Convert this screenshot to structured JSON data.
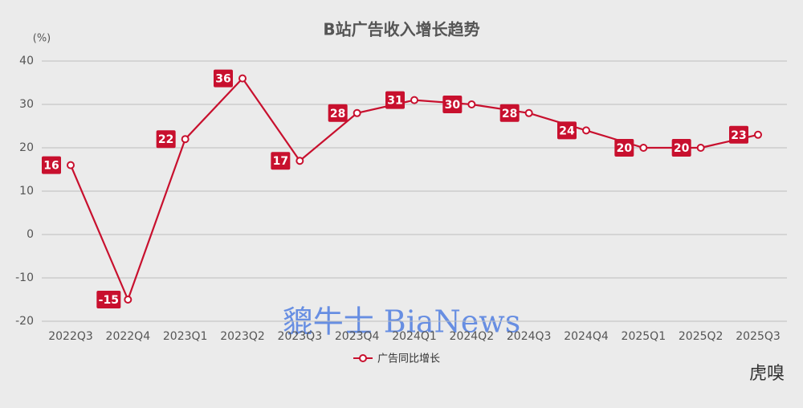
{
  "chart_data": {
    "type": "line",
    "title": "B站广告收入增长趋势",
    "y_label": "(%)",
    "categories": [
      "2022Q3",
      "2022Q4",
      "2023Q1",
      "2023Q2",
      "2023Q3",
      "2023Q4",
      "2024Q1",
      "2024Q2",
      "2024Q3",
      "2024Q4",
      "2025Q1",
      "2025Q2",
      "2025Q3"
    ],
    "series": [
      {
        "name": "广告同比增长",
        "color": "#c8102e",
        "values": [
          16,
          -15,
          22,
          36,
          17,
          28,
          31,
          30,
          28,
          24,
          20,
          20,
          23
        ]
      }
    ],
    "ylim": [
      -20,
      40
    ],
    "yticks": [
      -20,
      -10,
      0,
      10,
      20,
      30,
      40
    ],
    "grid": true,
    "watermark": "貔牛士 BiaNews",
    "brand": "虎嗅"
  }
}
